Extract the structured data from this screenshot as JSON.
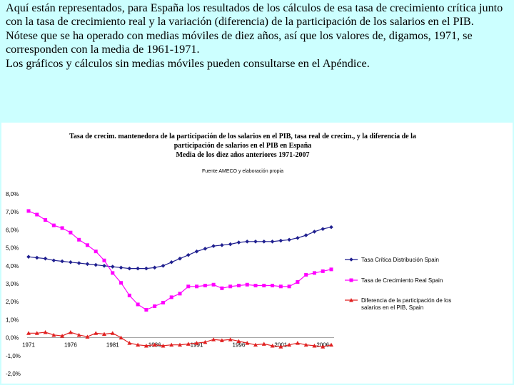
{
  "intro": {
    "lines": [
      "Aquí están representados, para España los resultados de los cálculos de esa tasa de crecimiento crítica junto con la tasa de crecimiento real y la variación (diferencia) de la participación de los salarios en el PIB.",
      "Nótese que se ha operado con medias móviles de diez años, así que los valores de, digamos, 1971, se corresponden con la media de 1961-1971.",
      "Los gráficos y cálculos sin medias móviles pueden consultarse en el Apéndice."
    ]
  },
  "chart_data": {
    "type": "line",
    "title": [
      "Tasa de crecim. mantenedora de la participación de los salarios en el PIB, tasa real de crecim., y la diferencia de la",
      "participación de salarios en el PIB en España",
      "Media de los diez años anteriores 1971-2007"
    ],
    "subtitle": "Fuente AMECO y elaboración propia",
    "x": [
      1971,
      1972,
      1973,
      1974,
      1975,
      1976,
      1977,
      1978,
      1979,
      1980,
      1981,
      1982,
      1983,
      1984,
      1985,
      1986,
      1987,
      1988,
      1989,
      1990,
      1991,
      1992,
      1993,
      1994,
      1995,
      1996,
      1997,
      1998,
      1999,
      2000,
      2001,
      2002,
      2003,
      2004,
      2005,
      2006,
      2007
    ],
    "x_tick_labels": [
      "1971",
      "1976",
      "1981",
      "1986",
      "1991",
      "1996",
      "2001",
      "2006"
    ],
    "y_tick_labels": [
      "8,0%",
      "7,0%",
      "6,0%",
      "5,0%",
      "4,0%",
      "3,0%",
      "2,0%",
      "1,0%",
      "0,0%",
      "-1,0%",
      "-2,0%"
    ],
    "ylim": [
      -2,
      8
    ],
    "grid": false,
    "legend_position": "right",
    "series": [
      {
        "name": "Tasa Crítica Distribución Spain",
        "color": "#1f1f8f",
        "marker": "diamond",
        "values": [
          4.5,
          4.45,
          4.4,
          4.3,
          4.25,
          4.2,
          4.15,
          4.1,
          4.05,
          4.0,
          3.95,
          3.9,
          3.85,
          3.85,
          3.85,
          3.9,
          4.0,
          4.2,
          4.4,
          4.6,
          4.8,
          4.95,
          5.1,
          5.15,
          5.2,
          5.3,
          5.35,
          5.35,
          5.35,
          5.35,
          5.4,
          5.45,
          5.55,
          5.7,
          5.9,
          6.05,
          6.15
        ]
      },
      {
        "name": "Tasa de Crecimiento Real Spain",
        "color": "#ff00ff",
        "marker": "square",
        "values": [
          7.05,
          6.85,
          6.55,
          6.25,
          6.1,
          5.85,
          5.45,
          5.15,
          4.8,
          4.3,
          3.6,
          3.05,
          2.35,
          1.85,
          1.55,
          1.75,
          1.95,
          2.25,
          2.45,
          2.85,
          2.85,
          2.9,
          2.95,
          2.75,
          2.85,
          2.9,
          2.95,
          2.9,
          2.9,
          2.9,
          2.85,
          2.85,
          3.1,
          3.5,
          3.6,
          3.7,
          3.8
        ]
      },
      {
        "name": "Diferencia de la participación de los salarios en el PIB, Spain",
        "color": "#e02020",
        "marker": "triangle",
        "values": [
          0.25,
          0.25,
          0.3,
          0.15,
          0.1,
          0.3,
          0.15,
          0.05,
          0.25,
          0.2,
          0.25,
          0.0,
          -0.3,
          -0.4,
          -0.45,
          -0.4,
          -0.45,
          -0.4,
          -0.4,
          -0.35,
          -0.3,
          -0.25,
          -0.1,
          -0.15,
          -0.1,
          -0.2,
          -0.3,
          -0.4,
          -0.35,
          -0.45,
          -0.5,
          -0.4,
          -0.3,
          -0.4,
          -0.45,
          -0.5,
          -0.4
        ]
      }
    ]
  }
}
